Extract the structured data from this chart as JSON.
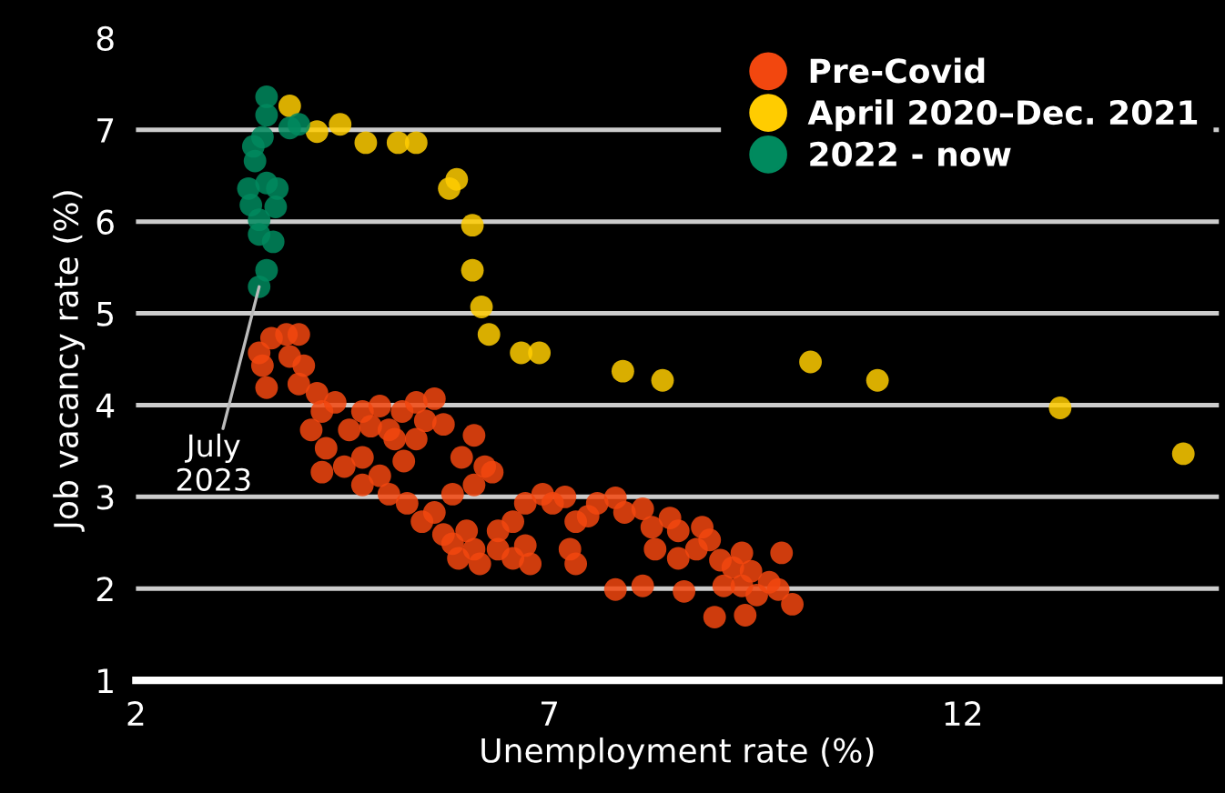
{
  "chart_data": {
    "type": "scatter",
    "xlabel": "Unemployment rate (%)",
    "ylabel": "Job vacancy rate (%)",
    "xlim": [
      2,
      15.1
    ],
    "ylim": [
      1,
      8
    ],
    "xticks": [
      2,
      7,
      12
    ],
    "yticks": [
      1,
      2,
      3,
      4,
      5,
      6,
      7,
      8
    ],
    "grid": "y",
    "legend": "top right",
    "marker": "circle",
    "series": [
      {
        "name": "Pre-Covid",
        "color": "#f2470f",
        "x": [
          3.49,
          3.64,
          3.82,
          3.97,
          3.53,
          3.58,
          3.86,
          4.03,
          3.97,
          4.19,
          4.25,
          4.41,
          4.12,
          4.3,
          4.25,
          4.52,
          4.74,
          4.58,
          4.74,
          4.95,
          4.84,
          5.06,
          5.22,
          5.13,
          5.39,
          5.5,
          5.61,
          5.39,
          5.72,
          5.24,
          4.95,
          4.74,
          5.06,
          5.28,
          5.46,
          5.61,
          5.72,
          5.83,
          6.0,
          6.09,
          6.16,
          5.9,
          6.09,
          6.09,
          6.22,
          5.94,
          6.31,
          5.83,
          6.38,
          6.56,
          6.77,
          6.71,
          7.25,
          7.32,
          6.71,
          7.04,
          7.19,
          7.32,
          7.47,
          7.58,
          7.8,
          7.91,
          8.13,
          8.24,
          8.46,
          8.56,
          8.28,
          8.56,
          8.78,
          8.85,
          8.94,
          9.07,
          9.11,
          9.22,
          9.33,
          9.33,
          9.44,
          9.51,
          9.37,
          9.66,
          9.77,
          9.81,
          9.94,
          9.0,
          8.63,
          7.8,
          8.13,
          6.92,
          6.56,
          6.38
        ],
        "values": [
          4.57,
          4.73,
          4.77,
          4.77,
          4.43,
          4.19,
          4.53,
          4.43,
          4.23,
          4.13,
          3.93,
          4.03,
          3.73,
          3.53,
          3.27,
          3.33,
          3.43,
          3.73,
          3.93,
          3.99,
          3.77,
          3.73,
          3.93,
          3.63,
          4.03,
          3.83,
          4.07,
          3.63,
          3.79,
          3.39,
          3.23,
          3.13,
          3.03,
          2.93,
          2.73,
          2.83,
          2.59,
          2.49,
          2.63,
          2.43,
          2.27,
          2.33,
          3.13,
          3.67,
          3.33,
          3.43,
          3.27,
          3.03,
          2.43,
          2.33,
          2.27,
          2.47,
          2.43,
          2.27,
          2.93,
          2.93,
          3.0,
          2.73,
          2.79,
          2.93,
          2.99,
          2.83,
          2.87,
          2.67,
          2.77,
          2.63,
          2.43,
          2.33,
          2.43,
          2.67,
          2.53,
          2.31,
          2.03,
          2.23,
          2.39,
          2.03,
          2.19,
          1.93,
          1.71,
          2.07,
          1.99,
          2.39,
          1.83,
          1.69,
          1.97,
          1.99,
          2.03,
          3.03,
          2.73,
          2.63
        ]
      },
      {
        "name": "April 2020–Dec. 2021",
        "color": "#ffcc00",
        "x": [
          3.86,
          4.19,
          4.47,
          4.78,
          5.17,
          5.39,
          5.79,
          5.88,
          6.07,
          6.07,
          6.18,
          6.27,
          6.66,
          6.88,
          7.89,
          8.37,
          10.16,
          10.97,
          13.18,
          14.67
        ],
        "values": [
          7.26,
          6.98,
          7.06,
          6.86,
          6.86,
          6.86,
          6.36,
          6.46,
          5.96,
          5.47,
          5.07,
          4.77,
          4.57,
          4.57,
          4.37,
          4.27,
          4.47,
          4.27,
          3.97,
          3.47
        ]
      },
      {
        "name": "2022 - now",
        "color": "#008a5e",
        "x": [
          3.58,
          3.58,
          3.86,
          3.97,
          3.53,
          3.42,
          3.36,
          3.71,
          3.39,
          3.69,
          3.49,
          3.49,
          3.66,
          3.58,
          3.49,
          3.44,
          3.58
        ],
        "values": [
          7.36,
          7.16,
          7.02,
          7.06,
          6.92,
          6.82,
          6.36,
          6.36,
          6.18,
          6.16,
          6.02,
          5.86,
          5.78,
          5.47,
          5.29,
          6.66,
          6.42
        ]
      }
    ],
    "annotations": [
      {
        "text": "July\n2023",
        "x": 3.49,
        "y": 5.29
      }
    ]
  }
}
